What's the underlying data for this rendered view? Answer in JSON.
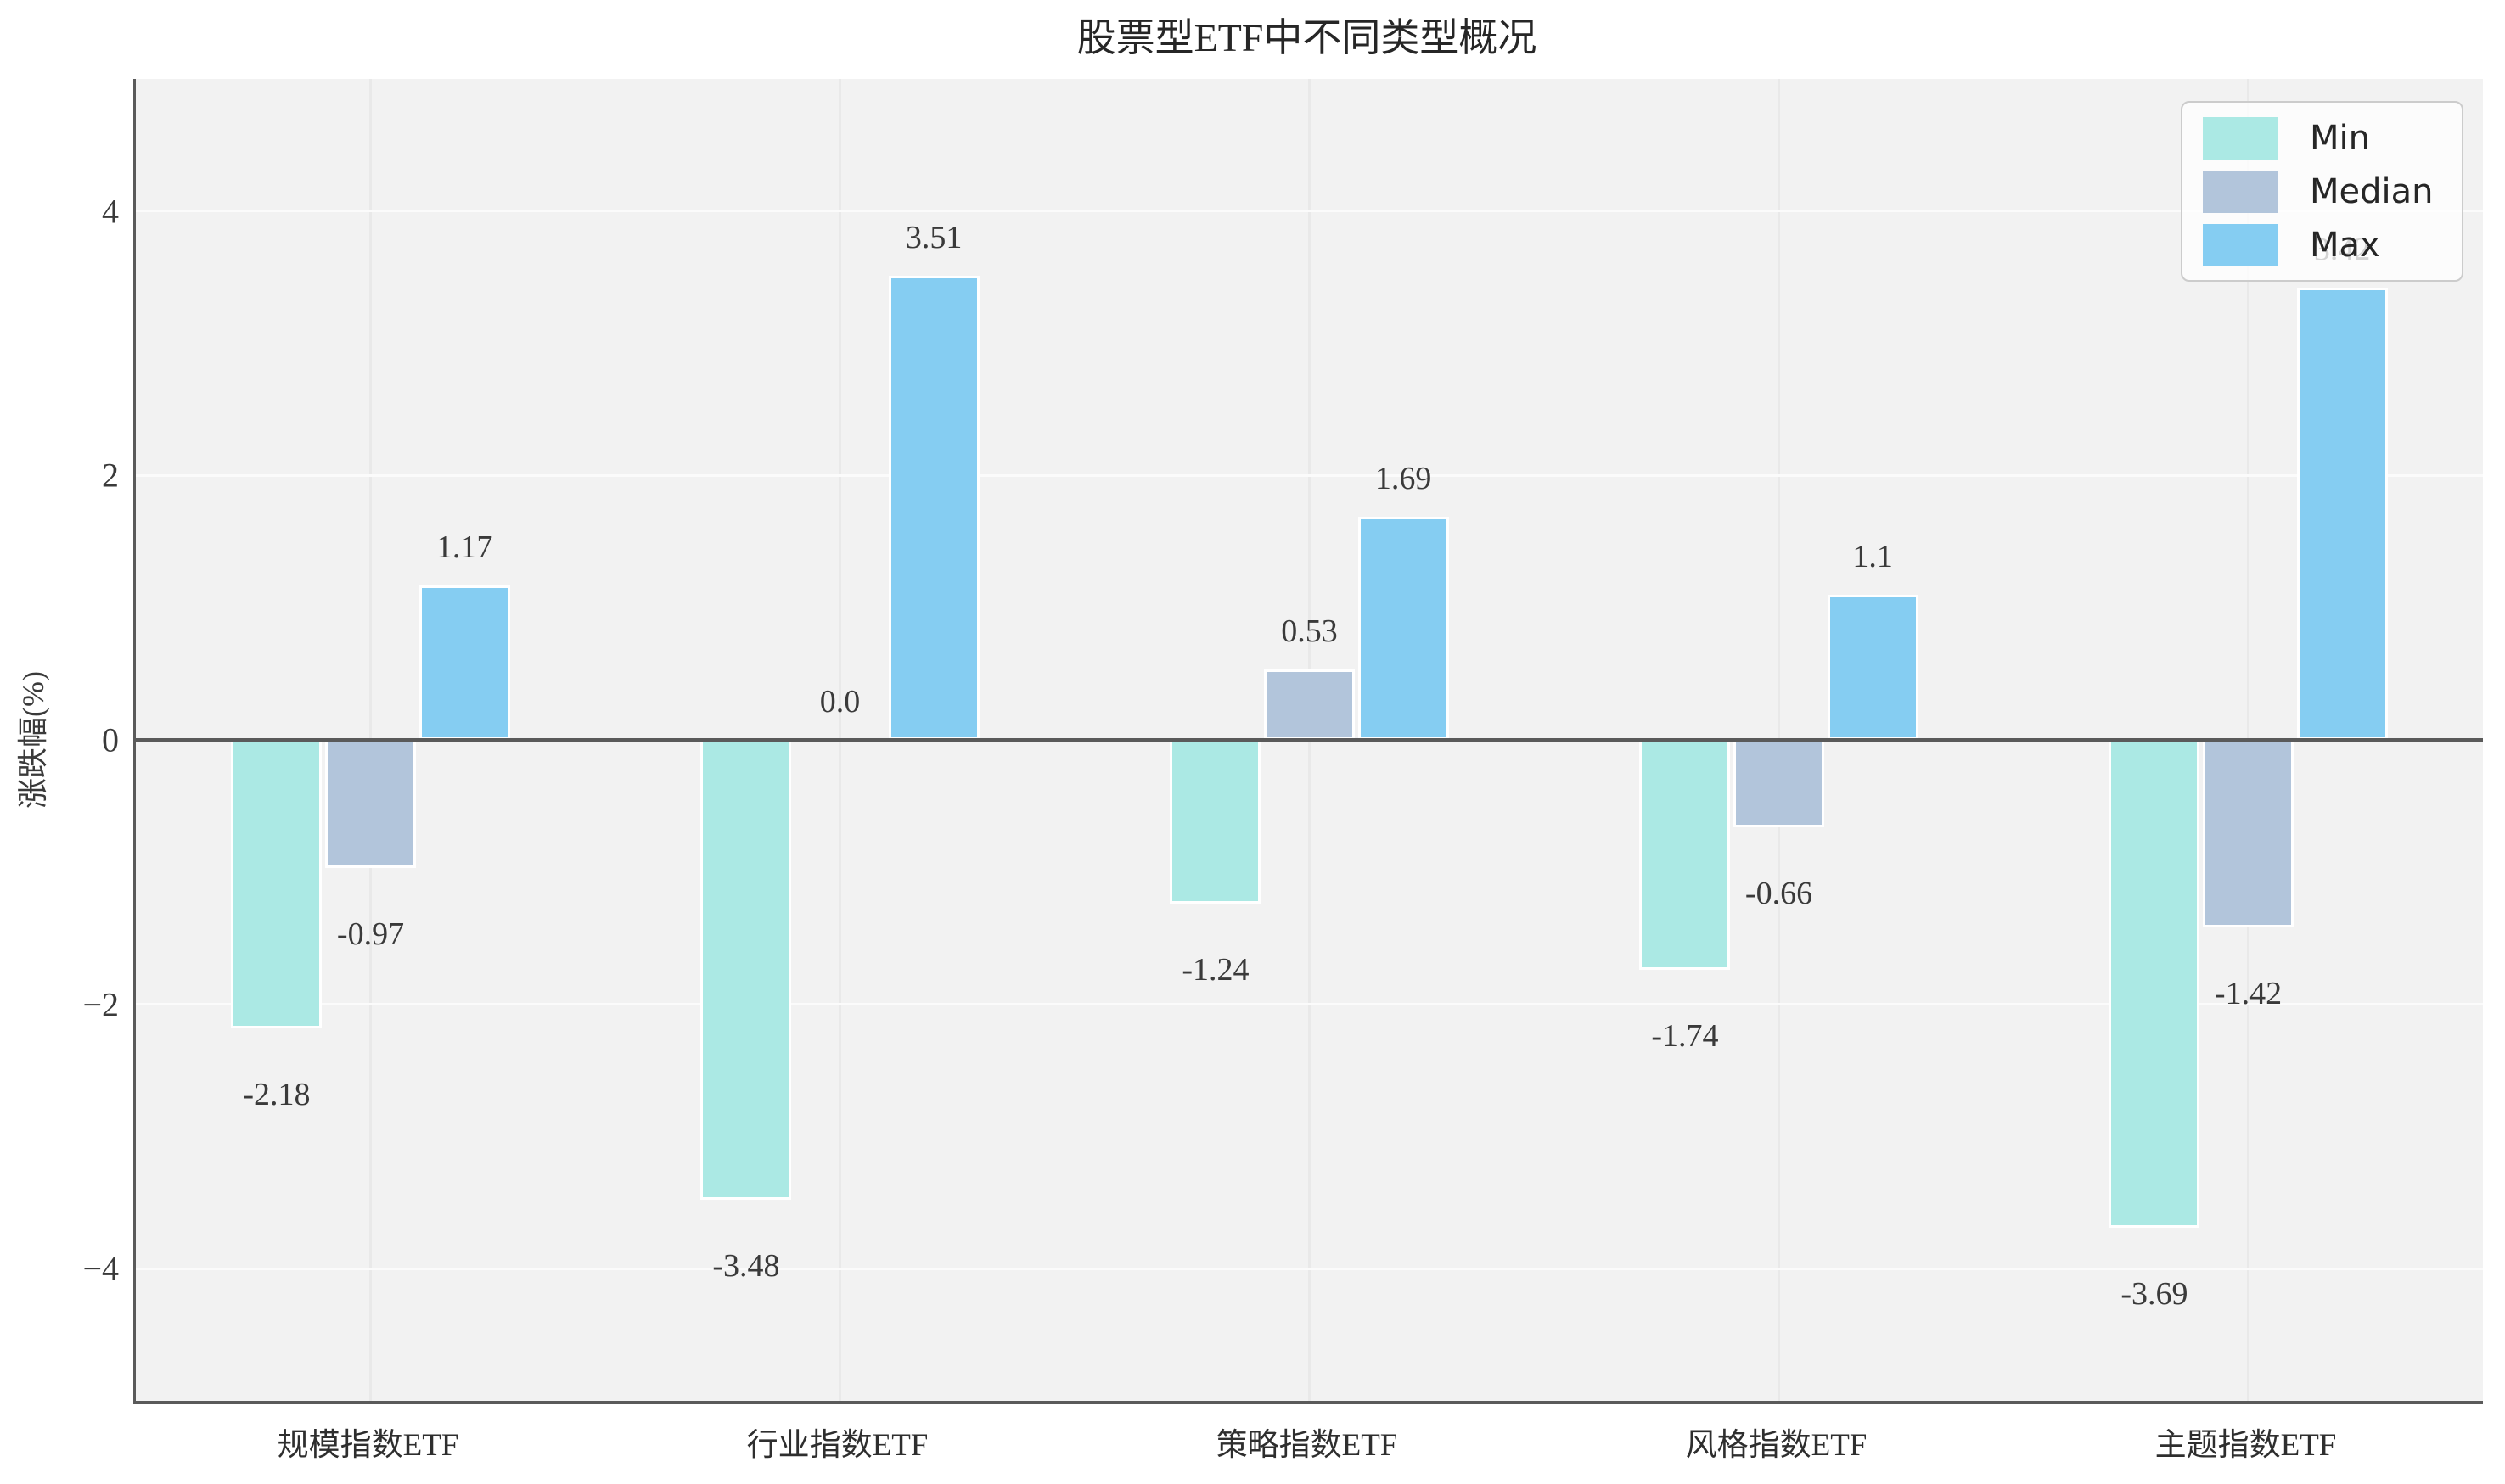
{
  "chart_data": {
    "type": "bar",
    "title": "股票型ETF中不同类型概况",
    "ylabel": "涨跌幅(%)",
    "xlabel": "",
    "categories": [
      "规模指数ETF",
      "行业指数ETF",
      "策略指数ETF",
      "风格指数ETF",
      "主题指数ETF"
    ],
    "series": [
      {
        "name": "Min",
        "color": "#abe9e4",
        "values": [
          -2.18,
          -3.48,
          -1.24,
          -1.74,
          -3.69
        ],
        "labels": [
          "-2.18",
          "-3.48",
          "-1.24",
          "-1.74",
          "-3.69"
        ]
      },
      {
        "name": "Median",
        "color": "#b2c5db",
        "values": [
          -0.97,
          0.0,
          0.53,
          -0.66,
          -1.42
        ],
        "labels": [
          "-0.97",
          "0.0",
          "0.53",
          "-0.66",
          "-1.42"
        ]
      },
      {
        "name": "Max",
        "color": "#85cdf2",
        "values": [
          1.17,
          3.51,
          1.69,
          1.1,
          3.42
        ],
        "labels": [
          "1.17",
          "3.51",
          "1.69",
          "1.1",
          "3.42"
        ]
      }
    ],
    "yticks": [
      {
        "value": 4,
        "label": "4"
      },
      {
        "value": 2,
        "label": "2"
      },
      {
        "value": 0,
        "label": "0"
      },
      {
        "value": -2,
        "label": "−2"
      },
      {
        "value": -4,
        "label": "−4"
      }
    ],
    "ylim": [
      -5,
      5
    ],
    "grid": true,
    "legend": {
      "position": "top-right",
      "entries": [
        "Min",
        "Median",
        "Max"
      ]
    },
    "colors": {
      "plot_background": "#f2f2f2",
      "h_gridline": "#fbfbfb",
      "v_gridline": "#e9e9e9",
      "axis_line": "#5a5a5a",
      "label_text": "#3a3a3a"
    }
  }
}
